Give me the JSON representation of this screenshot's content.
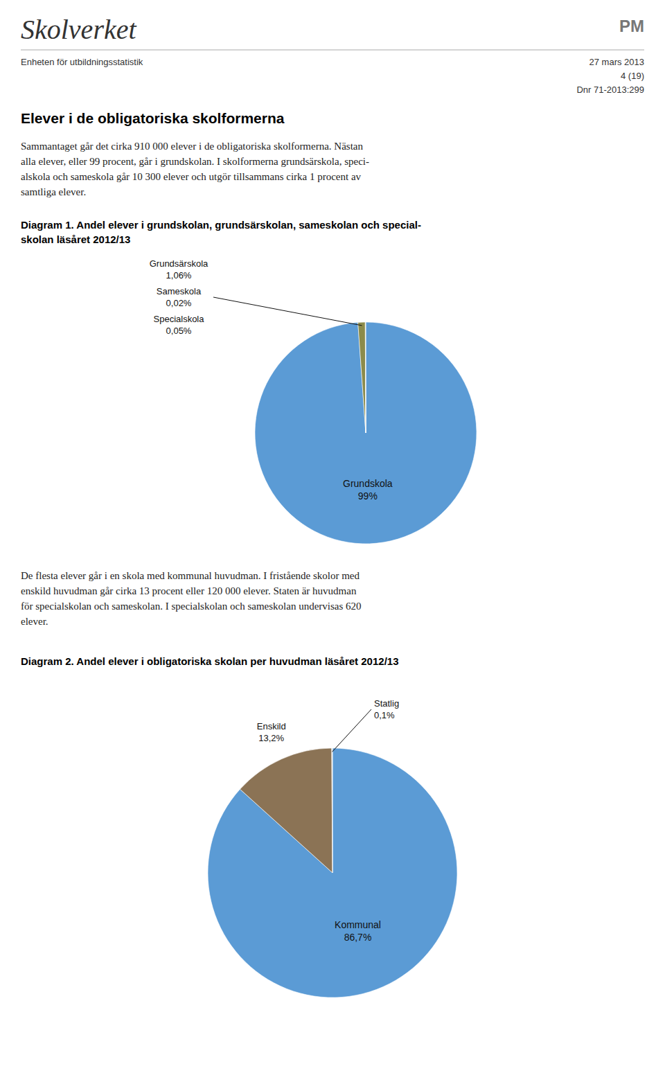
{
  "chart_data": [
    {
      "type": "pie",
      "title": "Diagram 1. Andel elever i grundskolan, grundsärskolan, sameskolan och special-\nskolan läsåret 2012/13",
      "categories": [
        "Grundskola",
        "Grundsärskola",
        "Sameskola",
        "Specialskola"
      ],
      "values": [
        99.0,
        1.06,
        0.02,
        0.05
      ],
      "value_labels": [
        "99%",
        "1,06%",
        "0,02%",
        "0,05%"
      ],
      "colors": [
        "#5B9BD5",
        "#8B8B4B",
        "#C8C870",
        "#C8B870"
      ],
      "data_labels": true,
      "annotations": [
        "Skolverket",
        "PM",
        "Enheten för utbildningsstatistik",
        "27 mars 2013\n4 (19)\nDnr 71-2013:299",
        "Elever i de obligatoriska skolformerna",
        "Sammantaget går det cirka 910 000 elever i de obligatoriska skolformerna. Nästan\nalla elever, eller 99 procent, går i grundskolan. I skolformerna grundsärskola, speci-\nalskola och sameskola går 10 300 elever och utgör tillsammans cirka 1 procent av\nsamtliga elever."
      ]
    },
    {
      "type": "pie",
      "title": "Diagram 2. Andel elever i obligatoriska skolan per huvudman läsåret 2012/13",
      "categories": [
        "Kommunal",
        "Enskild",
        "Statlig"
      ],
      "values": [
        86.7,
        13.2,
        0.1
      ],
      "value_labels": [
        "86,7%",
        "13,2%",
        "0,1%"
      ],
      "colors": [
        "#5B9BD5",
        "#8B7355",
        "#E8E8E0"
      ],
      "data_labels": true,
      "annotations": [
        "De flesta elever går i en skola med kommunal huvudman. I fristående skolor med\nenskild huvudman går cirka 13 procent eller 120 000 elever. Staten är huvudman\nför specialskolan och sameskolan. I specialskolan och sameskolan undervisas 620\nelever."
      ]
    }
  ]
}
